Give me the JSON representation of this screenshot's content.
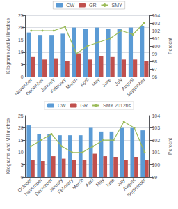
{
  "chart_data": [
    {
      "type": "bar",
      "categories": [
        "November",
        "December",
        "January",
        "February",
        "March",
        "April",
        "May",
        "June",
        "July",
        "August",
        "September"
      ],
      "series": [
        {
          "name": "CW",
          "type": "bar",
          "color": "#5B9BD5",
          "values": [
            18,
            17,
            17,
            17.5,
            20,
            19.5,
            20,
            19.5,
            19.5,
            20,
            20.5
          ]
        },
        {
          "name": "GR",
          "type": "bar",
          "color": "#C0504D",
          "values": [
            8,
            7,
            7.5,
            6.5,
            9.5,
            7,
            8.5,
            8,
            7,
            7,
            6.5
          ]
        },
        {
          "name": "SMY",
          "type": "line",
          "axis": "y2",
          "marker": "circle",
          "color": "#9BBB59",
          "values": [
            102,
            102,
            102,
            102.5,
            99,
            100,
            100.5,
            101,
            102,
            101.5,
            103
          ]
        }
      ],
      "ylabel": "Kilograms and Millimetres",
      "y2label": "Percent",
      "ylim": [
        0,
        25
      ],
      "yticks": [
        0,
        5,
        10,
        15,
        20,
        25
      ],
      "y2lim": [
        96,
        104
      ],
      "y2ticks": [
        96,
        97,
        98,
        99,
        100,
        101,
        102,
        103,
        104
      ],
      "grid": true,
      "legend": "upper center"
    },
    {
      "type": "bar",
      "categories": [
        "October",
        "November",
        "December",
        "January",
        "February",
        "March",
        "April",
        "May",
        "June",
        "July",
        "August",
        "September"
      ],
      "series": [
        {
          "name": "CW",
          "type": "bar",
          "color": "#5B9BD5",
          "values": [
            21,
            17.5,
            17.5,
            17,
            17,
            17,
            20,
            18.5,
            18.5,
            20,
            20,
            19
          ]
        },
        {
          "name": "GR",
          "type": "bar",
          "color": "#C0504D",
          "values": [
            7,
            6.5,
            8.5,
            7.5,
            7,
            7,
            9.5,
            8.5,
            8,
            7,
            8,
            7
          ]
        },
        {
          "name": "SMY 2012bs",
          "type": "line",
          "axis": "y2",
          "marker": "circle",
          "color": "#9BBB59",
          "values": [
            101.5,
            102,
            102.5,
            101.5,
            101,
            101,
            101.5,
            102,
            102,
            103.5,
            103,
            101
          ]
        }
      ],
      "ylabel": "Kilograms and Millimetres",
      "y2label": "Percent",
      "ylim": [
        0,
        25
      ],
      "yticks": [
        0,
        5,
        10,
        15,
        20,
        25
      ],
      "y2lim": [
        99,
        104
      ],
      "y2ticks": [
        99,
        100,
        101,
        102,
        103,
        104
      ],
      "grid": true,
      "legend": "upper center"
    }
  ]
}
